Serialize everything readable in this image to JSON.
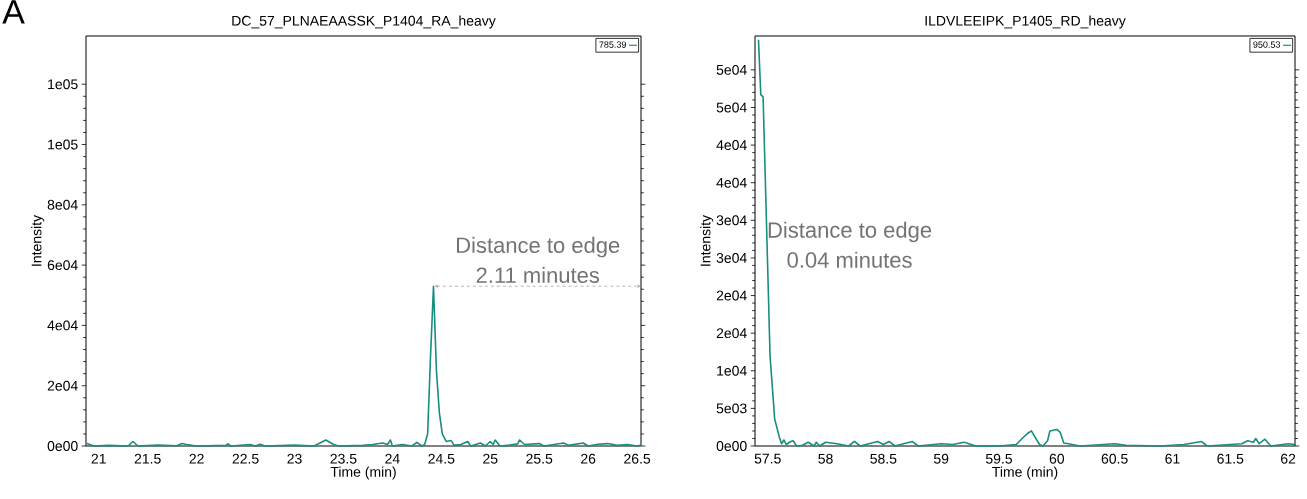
{
  "chart_data": [
    {
      "type": "line",
      "title": "DC_57_PLNAEAASSK_P1404_RA_heavy",
      "xlabel": "Time (min)",
      "ylabel": "Intensity",
      "x": [
        20.88,
        20.95,
        21.1,
        21.3,
        21.35,
        21.4,
        21.6,
        21.8,
        21.85,
        21.9,
        22.0,
        22.3,
        22.32,
        22.35,
        22.55,
        22.6,
        22.65,
        22.7,
        23.0,
        23.2,
        23.32,
        23.4,
        23.45,
        23.7,
        23.8,
        23.9,
        23.95,
        23.98,
        24.0,
        24.1,
        24.2,
        24.25,
        24.3,
        24.33,
        24.36,
        24.39,
        24.42,
        24.45,
        24.48,
        24.51,
        24.55,
        24.6,
        24.63,
        24.7,
        24.77,
        24.8,
        24.9,
        24.95,
        25.0,
        25.03,
        25.05,
        25.1,
        25.2,
        25.28,
        25.3,
        25.35,
        25.4,
        25.5,
        25.55,
        25.75,
        25.8,
        25.95,
        26.0,
        26.1,
        26.2,
        26.3,
        26.4,
        26.5,
        26.54
      ],
      "series": [
        {
          "name": "785.39",
          "color": "#168e80",
          "values": [
            800,
            0,
            200,
            0,
            1500,
            0,
            300,
            100,
            800,
            500,
            0,
            200,
            700,
            0,
            500,
            0,
            600,
            0,
            300,
            0,
            2000,
            500,
            0,
            200,
            500,
            1000,
            500,
            2000,
            0,
            500,
            0,
            1200,
            0,
            500,
            4000,
            30000,
            53000,
            25000,
            11000,
            4000,
            1500,
            1800,
            300,
            500,
            1500,
            0,
            1000,
            0,
            1500,
            500,
            2000,
            0,
            300,
            700,
            2000,
            500,
            600,
            800,
            0,
            1000,
            200,
            1000,
            0,
            600,
            800,
            200,
            500,
            0,
            300
          ]
        }
      ],
      "xlim": [
        20.87,
        26.54
      ],
      "ylim": [
        0,
        136000
      ],
      "xticks": [
        21,
        21.5,
        22,
        22.5,
        23,
        23.5,
        24,
        24.5,
        25,
        25.5,
        26,
        26.5
      ],
      "yticks": [
        {
          "value": 0,
          "label": "0e00"
        },
        {
          "value": 20000,
          "label": "2e04"
        },
        {
          "value": 40000,
          "label": "4e04"
        },
        {
          "value": 60000,
          "label": "6e04"
        },
        {
          "value": 80000,
          "label": "8e04"
        },
        {
          "value": 100000,
          "label": "1e05"
        },
        {
          "value": 120000,
          "label": "1e05"
        }
      ],
      "legend": "top right",
      "annotations": [
        "A",
        "Distance to edge",
        {
          "text": "2.11 minutes",
          "x": 24.43,
          "y": 53000
        }
      ]
    },
    {
      "type": "line",
      "title": "ILDVLEEIPK_P1405_RD_heavy",
      "xlabel": "Time (min)",
      "ylabel": "Intensity",
      "x": [
        57.42,
        57.44,
        57.46,
        57.52,
        57.56,
        57.6,
        57.62,
        57.64,
        57.66,
        57.7,
        57.72,
        57.75,
        57.8,
        57.85,
        57.9,
        57.92,
        57.95,
        58.0,
        58.1,
        58.2,
        58.25,
        58.3,
        58.45,
        58.5,
        58.55,
        58.6,
        58.75,
        58.8,
        59.0,
        59.1,
        59.2,
        59.3,
        59.5,
        59.65,
        59.7,
        59.75,
        59.78,
        59.85,
        59.88,
        59.92,
        59.94,
        60.0,
        60.03,
        60.06,
        60.1,
        60.2,
        60.5,
        60.6,
        60.9,
        61.1,
        61.25,
        61.3,
        61.5,
        61.6,
        61.65,
        61.7,
        61.72,
        61.75,
        61.8,
        61.85,
        62.0,
        62.06
      ],
      "series": [
        {
          "name": "950.53",
          "color": "#168e80",
          "values": [
            54000,
            46700,
            46400,
            12000,
            3600,
            1200,
            300,
            800,
            200,
            600,
            700,
            0,
            100,
            500,
            0,
            500,
            0,
            500,
            300,
            0,
            600,
            0,
            600,
            200,
            600,
            0,
            600,
            0,
            300,
            200,
            500,
            0,
            0,
            200,
            1000,
            1700,
            2000,
            200,
            0,
            700,
            2000,
            2200,
            1800,
            400,
            300,
            0,
            300,
            100,
            0,
            200,
            600,
            0,
            200,
            300,
            700,
            500,
            1000,
            300,
            900,
            0,
            300,
            200
          ]
        }
      ],
      "xlim": [
        57.39,
        62.06
      ],
      "ylim": [
        0,
        54500
      ],
      "xticks": [
        57.5,
        58,
        58.5,
        59,
        59.5,
        60,
        60.5,
        61,
        61.5,
        62
      ],
      "yticks": [
        {
          "value": 0,
          "label": "0e00"
        },
        {
          "value": 5000,
          "label": "5e03"
        },
        {
          "value": 10000,
          "label": "1e04"
        },
        {
          "value": 15000,
          "label": "2e04"
        },
        {
          "value": 20000,
          "label": "2e04"
        },
        {
          "value": 25000,
          "label": "3e04"
        },
        {
          "value": 30000,
          "label": "3e04"
        },
        {
          "value": 35000,
          "label": "4e04"
        },
        {
          "value": 40000,
          "label": "4e04"
        },
        {
          "value": 45000,
          "label": "5e04"
        },
        {
          "value": 50000,
          "label": "5e04"
        }
      ],
      "legend": "top right",
      "annotations": [
        "Distance to edge",
        "0.04 minutes"
      ]
    }
  ]
}
